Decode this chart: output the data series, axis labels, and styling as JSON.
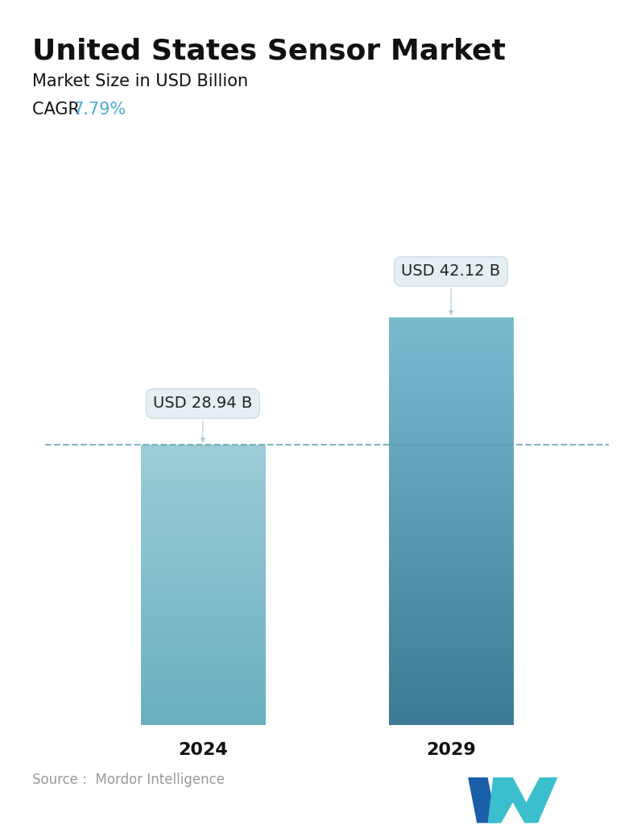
{
  "title": "United States Sensor Market",
  "subtitle": "Market Size in USD Billion",
  "cagr_label": "CAGR ",
  "cagr_value": "7.79%",
  "cagr_color": "#4BAED0",
  "categories": [
    "2024",
    "2029"
  ],
  "values": [
    28.94,
    42.12
  ],
  "bar_labels": [
    "USD 28.94 B",
    "USD 42.12 B"
  ],
  "bar_top_color_left": "#9ECDD8",
  "bar_bottom_color_left": "#6AAFC0",
  "bar_top_color_right": "#7BBBD0",
  "bar_bottom_color_right": "#3D7A93",
  "dashed_line_color": "#5B9DB5",
  "background_color": "#FFFFFF",
  "title_fontsize": 26,
  "subtitle_fontsize": 15,
  "cagr_fontsize": 15,
  "xlabel_fontsize": 16,
  "annotation_fontsize": 14,
  "source_text": "Source :  Mordor Intelligence",
  "source_color": "#999999",
  "source_fontsize": 12,
  "ylim_max": 50,
  "bar_width": 0.22
}
